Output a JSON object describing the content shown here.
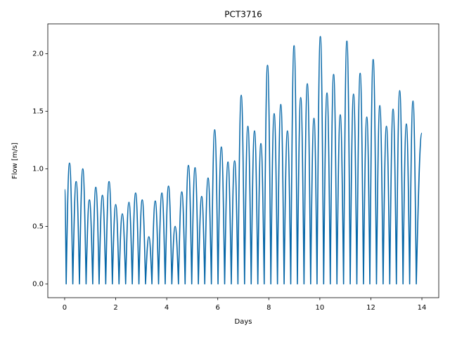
{
  "chart_data": {
    "type": "line",
    "title": "PCT3716",
    "x_label": "Days",
    "y_label": "Flow [m/s]",
    "x": [
      0,
      0.06,
      0.19,
      0.32,
      0.45,
      0.58,
      0.71,
      0.84,
      0.97,
      1.1,
      1.22,
      1.35,
      1.48,
      1.61,
      1.74,
      1.87,
      2.0,
      2.13,
      2.26,
      2.39,
      2.52,
      2.65,
      2.78,
      2.91,
      3.04,
      3.17,
      3.3,
      3.42,
      3.55,
      3.68,
      3.81,
      3.94,
      4.07,
      4.2,
      4.33,
      4.46,
      4.59,
      4.72,
      4.85,
      4.98,
      5.11,
      5.24,
      5.37,
      5.49,
      5.62,
      5.75,
      5.88,
      6.01,
      6.14,
      6.27,
      6.4,
      6.53,
      6.66,
      6.79,
      6.92,
      7.05,
      7.18,
      7.31,
      7.44,
      7.57,
      7.69,
      7.82,
      7.95,
      8.08,
      8.21,
      8.34,
      8.47,
      8.6,
      8.73,
      8.86,
      8.99,
      9.12,
      9.25,
      9.38,
      9.51,
      9.64,
      9.77,
      9.89,
      10.02,
      10.15,
      10.28,
      10.41,
      10.54,
      10.67,
      10.8,
      10.93,
      11.06,
      11.19,
      11.32,
      11.45,
      11.58,
      11.71,
      11.84,
      11.96,
      12.09,
      12.22,
      12.35,
      12.48,
      12.61,
      12.74,
      12.87,
      13.0,
      13.13,
      13.26,
      13.39,
      13.52,
      13.65,
      13.78,
      14.0
    ],
    "series": [
      {
        "color": "#0868a8",
        "values": [
          0.82,
          0,
          1.05,
          0,
          0.89,
          0,
          1.0,
          0,
          0.73,
          0,
          0.84,
          0,
          0.77,
          0,
          0.89,
          0,
          0.69,
          0,
          0.61,
          0,
          0.71,
          0,
          0.79,
          0,
          0.73,
          0,
          0.41,
          0,
          0.72,
          0,
          0.79,
          0,
          0.85,
          0,
          0.5,
          0,
          0.8,
          0,
          1.03,
          0,
          1.01,
          0,
          0.76,
          0,
          0.92,
          0,
          1.34,
          0,
          1.19,
          0,
          1.06,
          0,
          1.07,
          0,
          1.64,
          0,
          1.37,
          0,
          1.33,
          0,
          1.22,
          0,
          1.9,
          0,
          1.48,
          0,
          1.56,
          0,
          1.33,
          0,
          2.07,
          0,
          1.62,
          0,
          1.74,
          0,
          1.44,
          0,
          2.15,
          0,
          1.66,
          0,
          1.82,
          0,
          1.47,
          0,
          2.11,
          0,
          1.65,
          0,
          1.83,
          0,
          1.45,
          0,
          1.95,
          0,
          1.55,
          0,
          1.37,
          0,
          1.52,
          0,
          1.68,
          0,
          1.39,
          0,
          1.59,
          0,
          1.31
        ]
      }
    ],
    "xlim": [
      -0.66,
      14.66
    ],
    "ylim": [
      -0.12,
      2.26
    ],
    "xticks": [
      0,
      2,
      4,
      6,
      8,
      10,
      12,
      14
    ],
    "yticks": [
      {
        "value": 0,
        "label": "0.0"
      },
      {
        "value": 0.5,
        "label": "0.5"
      },
      {
        "value": 1,
        "label": "1.0"
      },
      {
        "value": 1.5,
        "label": "1.5"
      },
      {
        "value": 2,
        "label": "2.0"
      }
    ]
  }
}
